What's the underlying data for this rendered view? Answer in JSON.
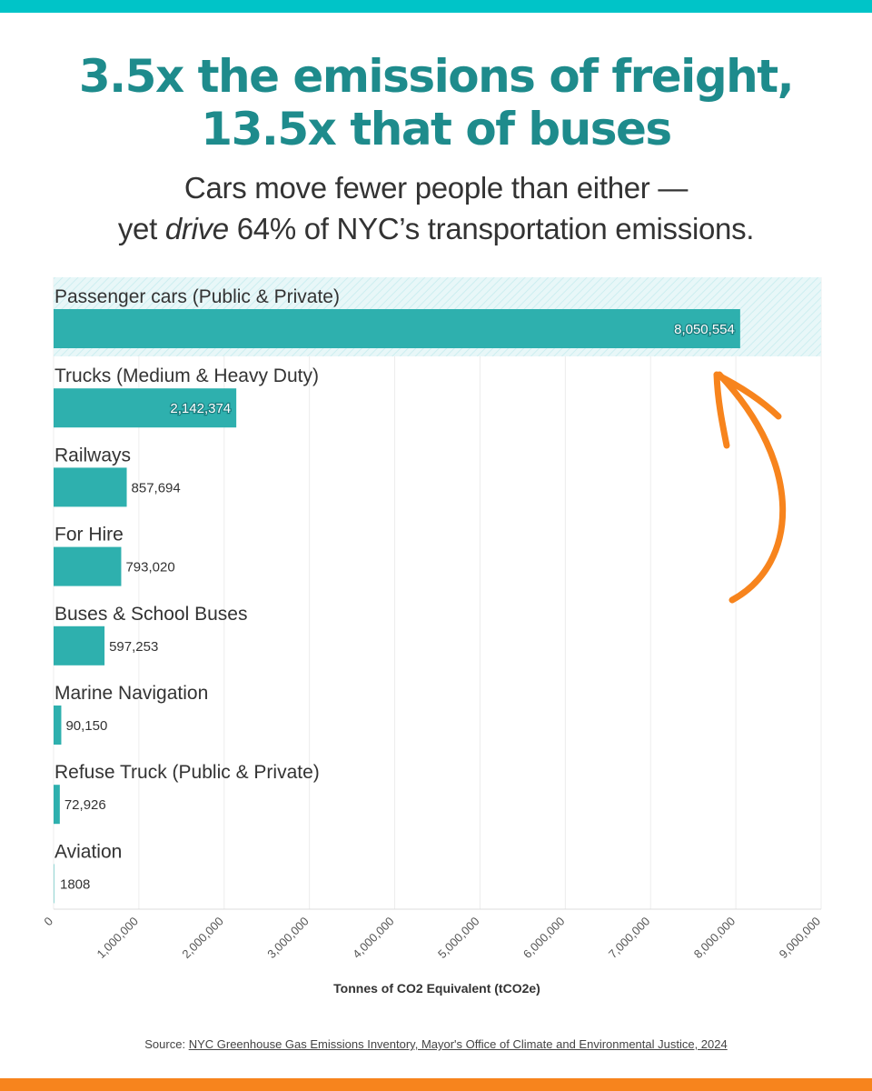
{
  "header": {
    "title_line1": "3.5x the emissions of freight,",
    "title_line2": "13.5x that of buses",
    "subtitle_line1": "Cars move fewer people than either —",
    "subtitle_line2_pre": "yet ",
    "subtitle_line2_em": "drive",
    "subtitle_line2_post": " 64% of NYC’s transportation emissions."
  },
  "colors": {
    "bar": "#2eb0ae",
    "headline": "#1e8b8c",
    "highlight_fill": "#e6f6f8",
    "arrow": "#f7841d",
    "top_bar": "#00c4c8",
    "bottom_bar": "#f7841d"
  },
  "chart_data": {
    "type": "bar",
    "orientation": "horizontal",
    "categories": [
      "Passenger cars (Public & Private)",
      "Trucks (Medium & Heavy Duty)",
      "Railways",
      "For Hire",
      "Buses & School Buses",
      "Marine Navigation",
      "Refuse Truck (Public & Private)",
      "Aviation"
    ],
    "values": [
      8050554,
      2142374,
      857694,
      793020,
      597253,
      90150,
      72926,
      1808
    ],
    "value_labels": [
      "8,050,554",
      "2,142,374",
      "857,694",
      "793,020",
      "597,253",
      "90,150",
      "72,926",
      "1808"
    ],
    "xlabel": "Tonnes of CO2 Equivalent (tCO2e)",
    "xlim": [
      0,
      9000000
    ],
    "x_ticks": [
      0,
      1000000,
      2000000,
      3000000,
      4000000,
      5000000,
      6000000,
      7000000,
      8000000,
      9000000
    ],
    "x_tick_labels": [
      "0",
      "1,000,000",
      "2,000,000",
      "3,000,000",
      "4,000,000",
      "5,000,000",
      "6,000,000",
      "7,000,000",
      "8,000,000",
      "9,000,000"
    ],
    "grid": true,
    "highlighted_category": "Passenger cars (Public & Private)"
  },
  "source": {
    "prefix": "Source: ",
    "link_text": "NYC Greenhouse Gas Emissions Inventory, Mayor's Office of Climate and Environmental Justice, 2024"
  }
}
